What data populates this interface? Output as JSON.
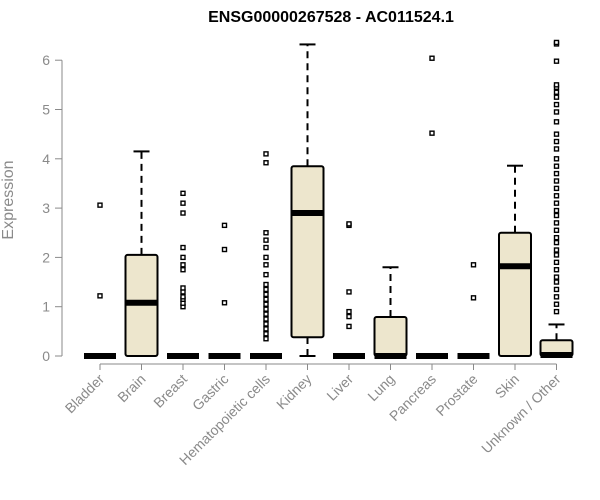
{
  "chart_data": {
    "type": "boxplot",
    "title": "ENSG00000267528 - AC011524.1",
    "xlabel": "",
    "ylabel": "Expression",
    "ylim": [
      0,
      6.6
    ],
    "yticks": [
      0,
      1,
      2,
      3,
      4,
      5,
      6
    ],
    "grid": false,
    "colors": {
      "box_fill": "#ede6cd",
      "stroke": "#000000",
      "axis": "#8a8a8a"
    },
    "categories": [
      "Bladder",
      "Brain",
      "Breast",
      "Gastric",
      "Hematopoietic cells",
      "Kidney",
      "Liver",
      "Lung",
      "Pancreas",
      "Prostate",
      "Skin",
      "Unknown / Other"
    ],
    "boxes": [
      {
        "category": "Bladder",
        "min": 0,
        "q1": 0,
        "median": 0,
        "q3": 0,
        "max": 0,
        "outliers": [
          1.22,
          3.06
        ]
      },
      {
        "category": "Brain",
        "min": 0,
        "q1": 0,
        "median": 1.08,
        "q3": 2.05,
        "max": 4.15,
        "outliers": []
      },
      {
        "category": "Breast",
        "min": 0,
        "q1": 0,
        "median": 0,
        "q3": 0,
        "max": 0,
        "outliers": [
          1.0,
          1.07,
          1.15,
          1.2,
          1.3,
          1.38,
          1.75,
          1.85,
          2.0,
          2.2,
          2.9,
          3.1,
          3.3
        ]
      },
      {
        "category": "Gastric",
        "min": 0,
        "q1": 0,
        "median": 0,
        "q3": 0,
        "max": 0,
        "outliers": [
          1.08,
          2.16,
          2.65
        ]
      },
      {
        "category": "Hematopoietic cells",
        "min": 0,
        "q1": 0,
        "median": 0,
        "q3": 0,
        "max": 0,
        "outliers": [
          0.35,
          0.45,
          0.55,
          0.65,
          0.75,
          0.85,
          0.95,
          1.05,
          1.15,
          1.25,
          1.35,
          1.45,
          1.65,
          1.85,
          2.0,
          2.2,
          2.35,
          2.5,
          3.92,
          4.1
        ]
      },
      {
        "category": "Kidney",
        "min": 0,
        "q1": 0.38,
        "median": 2.9,
        "q3": 3.85,
        "max": 6.32,
        "outliers": []
      },
      {
        "category": "Liver",
        "min": 0,
        "q1": 0,
        "median": 0,
        "q3": 0,
        "max": 0,
        "outliers": [
          0.6,
          0.8,
          0.9,
          1.3,
          2.65,
          2.68
        ]
      },
      {
        "category": "Lung",
        "min": 0,
        "q1": 0,
        "median": 0,
        "q3": 0.79,
        "max": 1.8,
        "outliers": []
      },
      {
        "category": "Pancreas",
        "min": 0,
        "q1": 0,
        "median": 0,
        "q3": 0,
        "max": 0,
        "outliers": [
          4.52,
          6.04
        ]
      },
      {
        "category": "Prostate",
        "min": 0,
        "q1": 0,
        "median": 0,
        "q3": 0,
        "max": 0,
        "outliers": [
          1.18,
          1.85
        ]
      },
      {
        "category": "Skin",
        "min": 0,
        "q1": 0,
        "median": 1.82,
        "q3": 2.5,
        "max": 3.86,
        "outliers": []
      },
      {
        "category": "Unknown / Other",
        "min": 0,
        "q1": 0,
        "median": 0.02,
        "q3": 0.32,
        "max": 0.64,
        "outliers": [
          0.9,
          1.05,
          1.2,
          1.35,
          1.5,
          1.6,
          1.75,
          1.9,
          2.05,
          2.15,
          2.3,
          2.4,
          2.55,
          2.7,
          2.85,
          2.95,
          3.1,
          3.25,
          3.4,
          3.55,
          3.7,
          3.85,
          4.0,
          4.2,
          4.35,
          4.5,
          4.75,
          4.95,
          5.1,
          5.25,
          5.35,
          5.45,
          5.5,
          5.98,
          6.33,
          6.36
        ]
      }
    ]
  }
}
